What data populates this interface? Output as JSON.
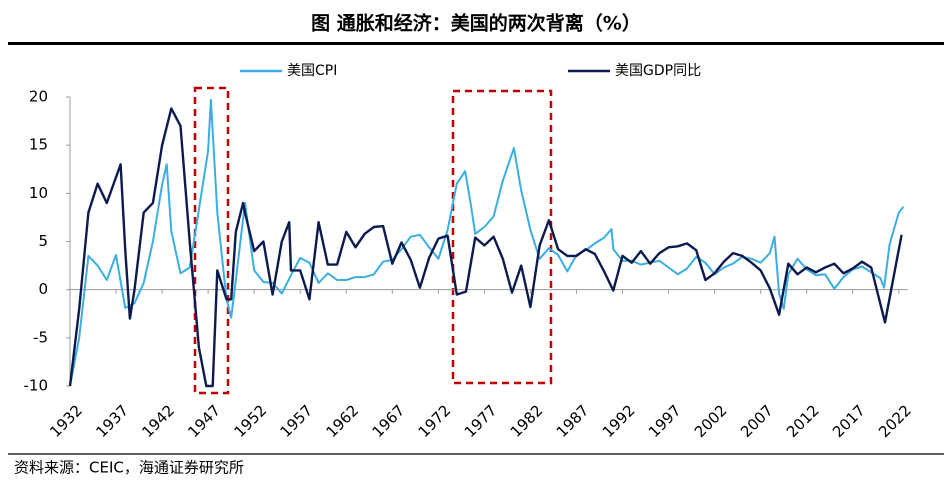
{
  "chart_data": {
    "type": "line",
    "title": "图  通胀和经济：美国的两次背离（%）",
    "source": "资料来源：CEIC，海通证券研究所",
    "xlim": [
      1932,
      2023
    ],
    "ylim": [
      -10,
      20
    ],
    "xticks": [
      1932,
      1937,
      1942,
      1947,
      1952,
      1957,
      1962,
      1967,
      1972,
      1977,
      1982,
      1987,
      1992,
      1997,
      2002,
      2007,
      2012,
      2017,
      2022
    ],
    "yticks": [
      -10,
      -5,
      0,
      5,
      10,
      15,
      20
    ],
    "series": [
      {
        "name": "美国CPI",
        "color": "#3aaee0",
        "x": [
          1932,
          1933,
          1934,
          1935,
          1936,
          1937,
          1938,
          1939,
          1940,
          1941,
          1942,
          1942.5,
          1943,
          1944,
          1945,
          1946,
          1947,
          1947.3,
          1948,
          1949,
          1949.5,
          1950,
          1951,
          1952,
          1953,
          1954,
          1955,
          1956,
          1957,
          1958,
          1959,
          1960,
          1961,
          1962,
          1963,
          1964,
          1965,
          1966,
          1967,
          1968,
          1969,
          1970,
          1971,
          1972,
          1973,
          1974,
          1974.9,
          1975.5,
          1976,
          1977,
          1978,
          1979,
          1980.2,
          1981,
          1982,
          1983,
          1984,
          1985,
          1986,
          1987,
          1988,
          1989,
          1990,
          1990.8,
          1991,
          1992,
          1993,
          1994,
          1995,
          1996,
          1997,
          1998,
          1999,
          2000,
          2001,
          2002,
          2003,
          2004,
          2005,
          2006,
          2007,
          2008,
          2008.5,
          2009,
          2009.5,
          2010,
          2011,
          2012,
          2013,
          2014,
          2015,
          2016,
          2017,
          2018,
          2019,
          2020,
          2020.4,
          2021,
          2022,
          2022.5
        ],
        "values": [
          -10,
          -5,
          3.5,
          2.5,
          1,
          3.6,
          -1.9,
          -1.4,
          0.7,
          5,
          10.9,
          13,
          6.1,
          1.7,
          2.3,
          8.3,
          14.4,
          19.7,
          8,
          -1,
          -2.9,
          1,
          9,
          2,
          0.8,
          0.7,
          -0.4,
          1.5,
          3.3,
          2.8,
          0.7,
          1.7,
          1,
          1,
          1.3,
          1.3,
          1.6,
          2.9,
          3.1,
          4.2,
          5.5,
          5.7,
          4.4,
          3.2,
          6.2,
          11,
          12.3,
          9,
          5.8,
          6.5,
          7.6,
          11.3,
          14.7,
          10.3,
          6.2,
          3.2,
          4.3,
          3.6,
          1.9,
          3.6,
          4.1,
          4.8,
          5.4,
          6.3,
          4.2,
          3,
          3,
          2.6,
          2.8,
          3,
          2.3,
          1.6,
          2.2,
          3.4,
          2.8,
          1.6,
          2.3,
          2.7,
          3.4,
          3.2,
          2.8,
          3.8,
          5.5,
          -0.4,
          -2,
          1.6,
          3.2,
          2.1,
          1.5,
          1.6,
          0.1,
          1.3,
          2.1,
          2.4,
          1.8,
          1.2,
          0.2,
          4.7,
          8,
          8.6
        ]
      },
      {
        "name": "美国GDP同比",
        "color": "#0c1a4e",
        "x": [
          1932,
          1933,
          1934,
          1935,
          1936,
          1937.5,
          1938,
          1938.5,
          1939,
          1940,
          1941,
          1942,
          1943,
          1944,
          1945,
          1946,
          1946.8,
          1947.5,
          1948,
          1949,
          1949.5,
          1950,
          1950.8,
          1951,
          1952,
          1953,
          1954,
          1955,
          1955.8,
          1956,
          1957,
          1958,
          1959,
          1960,
          1961,
          1962,
          1963,
          1964,
          1965,
          1966,
          1967,
          1968,
          1969,
          1970,
          1971,
          1972,
          1973,
          1974,
          1975,
          1976,
          1977,
          1978,
          1979,
          1980,
          1981,
          1982,
          1983,
          1984,
          1985,
          1986,
          1987,
          1988,
          1989,
          1990,
          1991,
          1992,
          1993,
          1994,
          1995,
          1996,
          1997,
          1998,
          1999,
          2000,
          2001,
          2002,
          2003,
          2004,
          2005,
          2006,
          2007,
          2008,
          2009,
          2010,
          2011,
          2012,
          2013,
          2014,
          2015,
          2016,
          2017,
          2018,
          2019,
          2020.5,
          2022.3
        ],
        "values": [
          -10,
          -2,
          8,
          11,
          9,
          13,
          4,
          -3,
          0,
          8,
          9,
          15,
          18.8,
          17,
          5,
          -6,
          -10,
          -10,
          2,
          -1,
          -1,
          6,
          9,
          8,
          4,
          5,
          -0.5,
          5,
          7,
          2,
          2,
          -1,
          7,
          2.6,
          2.6,
          6,
          4.4,
          5.8,
          6.5,
          6.6,
          2.7,
          4.9,
          3.1,
          0.2,
          3.3,
          5.3,
          5.6,
          -0.5,
          -0.2,
          5.4,
          4.6,
          5.5,
          3.2,
          -0.3,
          2.5,
          -1.8,
          4.6,
          7.2,
          4.2,
          3.5,
          3.5,
          4.2,
          3.7,
          1.9,
          -0.1,
          3.5,
          2.8,
          4,
          2.7,
          3.8,
          4.4,
          4.5,
          4.8,
          4.1,
          1,
          1.7,
          2.9,
          3.8,
          3.5,
          2.8,
          2,
          0.1,
          -2.6,
          2.7,
          1.6,
          2.3,
          1.8,
          2.3,
          2.7,
          1.7,
          2.2,
          2.9,
          2.3,
          -3.4,
          5.7
        ]
      }
    ]
  }
}
